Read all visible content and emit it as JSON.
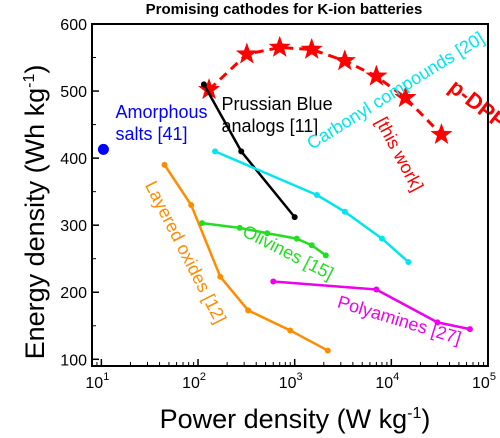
{
  "chart_data": {
    "type": "line",
    "title": "Promising cathodes for K-ion batteries",
    "xlabel": {
      "base": "Power density (W kg",
      "sup": "-1",
      "tail": ")"
    },
    "ylabel": {
      "base": "Energy density (Wh kg",
      "sup": "-1",
      "tail": ")"
    },
    "xscale": "log",
    "xlim": [
      8,
      100000
    ],
    "ylim": [
      90,
      600
    ],
    "yticks": [
      100,
      200,
      300,
      400,
      500,
      600
    ],
    "xticks": [
      {
        "value": 10,
        "base": "10",
        "exp": "1"
      },
      {
        "value": 100,
        "base": "10",
        "exp": "2"
      },
      {
        "value": 1000,
        "base": "10",
        "exp": "3"
      },
      {
        "value": 10000,
        "base": "10",
        "exp": "4"
      },
      {
        "value": 100000,
        "base": "10",
        "exp": "5"
      }
    ],
    "series": [
      {
        "name": "p-DPPZ",
        "note": "[this work]",
        "color": "#ff0000",
        "marker": "star",
        "dashed": true,
        "x": [
          130,
          320,
          700,
          1500,
          3300,
          7000,
          14000,
          33000
        ],
        "y": [
          502,
          555,
          565,
          562,
          545,
          522,
          490,
          435
        ]
      },
      {
        "name": "Prussian Blue analogs [11]",
        "color": "#000000",
        "marker": "dot",
        "x": [
          115,
          280,
          1000
        ],
        "y": [
          510,
          410,
          312
        ]
      },
      {
        "name": "Amorphous salts [41]",
        "color": "#0000ff",
        "marker": "circle",
        "x": [
          10.5
        ],
        "y": [
          413
        ]
      },
      {
        "name": "Carbonyl compounds [20]",
        "color": "#00e5ee",
        "marker": "dot",
        "x": [
          150,
          1700,
          3300,
          8000,
          15000
        ],
        "y": [
          410,
          345,
          320,
          280,
          245
        ]
      },
      {
        "name": "Layered oxides [12]",
        "color": "#ff8c00",
        "marker": "dot",
        "x": [
          45,
          85,
          170,
          330,
          900,
          2200
        ],
        "y": [
          390,
          330,
          223,
          173,
          143,
          113
        ]
      },
      {
        "name": "Olivines [15]",
        "color": "#22dd22",
        "marker": "dot",
        "x": [
          110,
          270,
          520,
          1050,
          1500,
          2100
        ],
        "y": [
          303,
          296,
          288,
          280,
          270,
          255
        ]
      },
      {
        "name": "Polyamines [27]",
        "color": "#ee00ee",
        "marker": "dot",
        "x": [
          600,
          7000,
          30000,
          65000
        ],
        "y": [
          216,
          204,
          155,
          145
        ]
      }
    ],
    "labels": [
      {
        "series": 0,
        "lines": [
          "p-DPPZ"
        ],
        "x": 38000,
        "y": 502,
        "rotate": 38,
        "big": true
      },
      {
        "series": 0,
        "lines": [
          "[this work]"
        ],
        "x": 6800,
        "y": 455,
        "rotate": 62,
        "big": false
      },
      {
        "series": 1,
        "lines": [
          "Prussian Blue",
          "analogs [11]"
        ],
        "x": 175,
        "y": 472,
        "rotate": 0,
        "big": false
      },
      {
        "series": 2,
        "lines": [
          "Amorphous",
          "salts [41]"
        ],
        "x": 14,
        "y": 460,
        "rotate": 0,
        "big": false
      },
      {
        "series": 3,
        "lines": [
          "Carbonyl compounds [20]"
        ],
        "x": 1500,
        "y": 412,
        "rotate": -32,
        "big": false
      },
      {
        "series": 4,
        "lines": [
          "Layered oxides [12]"
        ],
        "x": 28,
        "y": 360,
        "rotate": 63,
        "big": false
      },
      {
        "series": 5,
        "lines": [
          "Olivines [15]"
        ],
        "x": 280,
        "y": 285,
        "rotate": 27,
        "big": false
      },
      {
        "series": 6,
        "lines": [
          "Polyamines [27]"
        ],
        "x": 2700,
        "y": 178,
        "rotate": 17,
        "big": false
      }
    ]
  }
}
